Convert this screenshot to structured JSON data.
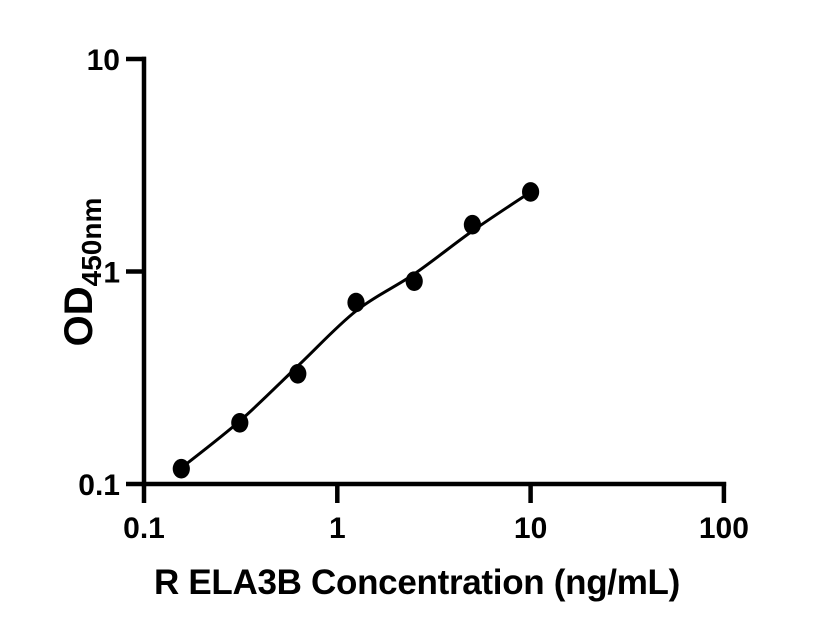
{
  "figure": {
    "background_color": "#ffffff",
    "ink_color": "#000000"
  },
  "chart_data": {
    "type": "scatter",
    "title": "",
    "xlabel": "R ELA3B Concentration (ng/mL)",
    "ylabel": {
      "base": "OD",
      "subscript": "450nm"
    },
    "x_scale": "log10",
    "y_scale": "log10",
    "xlim": [
      0.1,
      100
    ],
    "ylim": [
      0.1,
      10
    ],
    "x_ticks": [
      0.1,
      1,
      10,
      100
    ],
    "x_tick_labels": [
      "0.1",
      "1",
      "10",
      "100"
    ],
    "y_ticks": [
      0.1,
      1,
      10
    ],
    "y_tick_labels": [
      "0.1",
      "1",
      "10"
    ],
    "grid": false,
    "legend": null,
    "series": [
      {
        "name": "standard-points",
        "marker": "filled-circle",
        "color": "#000000",
        "x": [
          0.156,
          0.313,
          0.625,
          1.25,
          2.5,
          5,
          10
        ],
        "y": [
          0.118,
          0.194,
          0.33,
          0.715,
          0.9,
          1.66,
          2.37
        ]
      }
    ],
    "fit_curve": {
      "name": "fitted-standard-curve",
      "color": "#000000",
      "x": [
        0.156,
        0.313,
        0.625,
        1.25,
        2.5,
        5,
        10
      ],
      "y": [
        0.119,
        0.198,
        0.359,
        0.652,
        0.973,
        1.551,
        2.366
      ]
    }
  }
}
